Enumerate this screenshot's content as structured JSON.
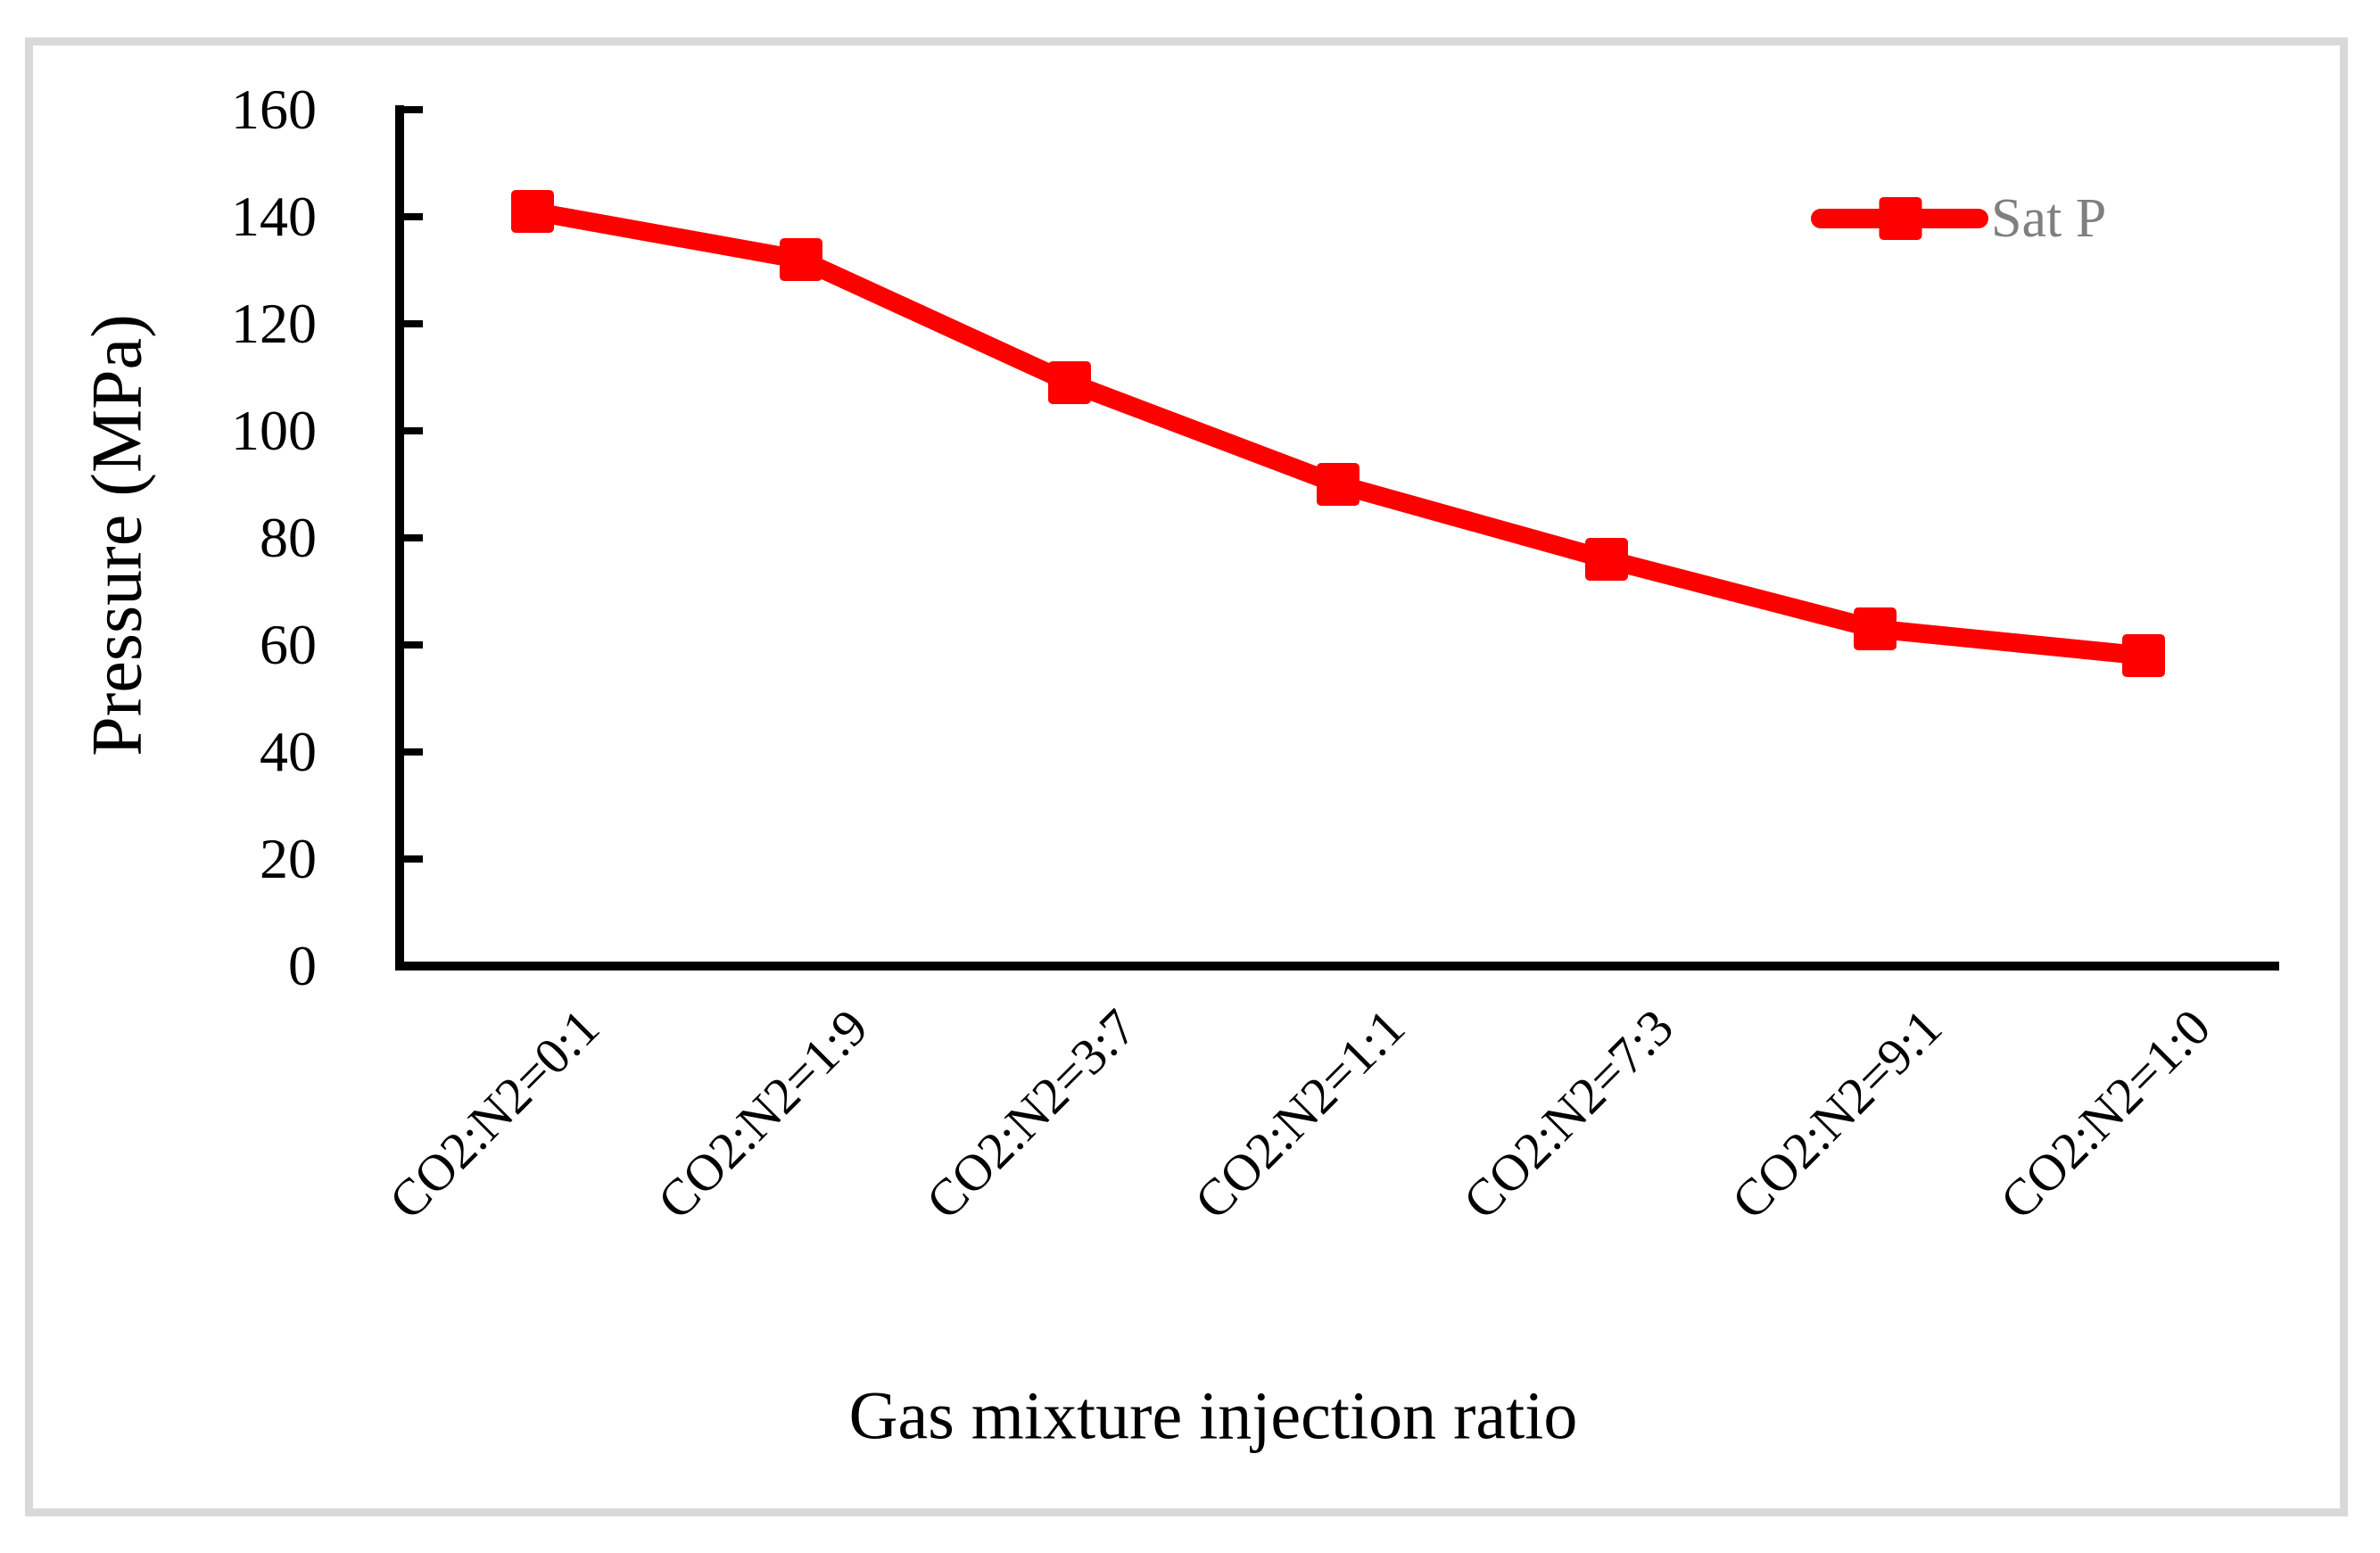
{
  "chart_data": {
    "type": "line",
    "title": "",
    "categories": [
      "CO2:N2=0:1",
      "CO2:N2=1:9",
      "CO2:N2=3:7",
      "CO2:N2=1:1",
      "CO2:N2=7:3",
      "CO2:N2=9:1",
      "CO2:N2=1:0"
    ],
    "series": [
      {
        "name": "Sat P",
        "values": [
          141,
          132,
          109,
          90,
          76,
          63,
          58
        ],
        "color": "#FF0000",
        "marker": "square"
      }
    ],
    "xlabel": "Gas mixture injection ratio",
    "ylabel": "Pressure (MPa)",
    "ylim": [
      0,
      160
    ],
    "y_ticks": [
      0,
      20,
      40,
      60,
      80,
      100,
      120,
      140,
      160
    ],
    "grid": false,
    "legend": {
      "label": "Sat P",
      "position": "top-right",
      "text_color": "#7F7F7F"
    },
    "axis_color": "#000000",
    "frame_color": "#D9D9D9"
  }
}
